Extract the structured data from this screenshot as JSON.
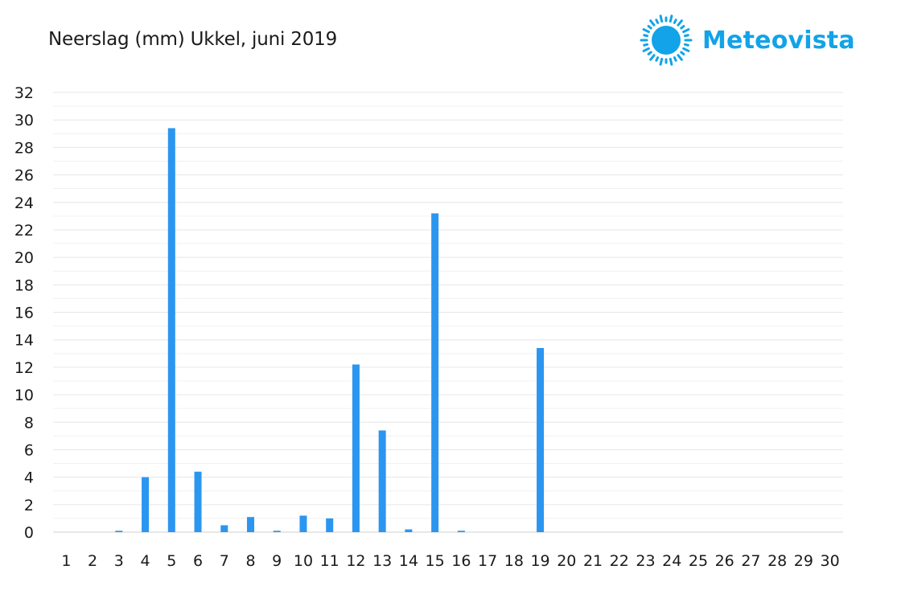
{
  "title": "Neerslag (mm) Ukkel, juni 2019",
  "brand": {
    "name": "Meteovista",
    "icon": "sun-logo-icon",
    "color": "#12a3e8"
  },
  "colors": {
    "bar": "#2b96f0",
    "grid": "#e6e6e6"
  },
  "chart_data": {
    "type": "bar",
    "title": "Neerslag (mm) Ukkel, juni 2019",
    "xlabel": "",
    "ylabel": "",
    "categories": [
      "1",
      "2",
      "3",
      "4",
      "5",
      "6",
      "7",
      "8",
      "9",
      "10",
      "11",
      "12",
      "13",
      "14",
      "15",
      "16",
      "17",
      "18",
      "19",
      "20",
      "21",
      "22",
      "23",
      "24",
      "25",
      "26",
      "27",
      "28",
      "29",
      "30"
    ],
    "values": [
      0,
      0,
      0.1,
      4.0,
      29.4,
      4.4,
      0.5,
      1.1,
      0.1,
      1.2,
      1.0,
      12.2,
      7.4,
      0.2,
      23.2,
      0.1,
      0,
      0,
      13.4,
      0,
      0,
      0,
      0,
      0,
      0,
      0,
      0,
      0,
      0,
      0
    ],
    "ylim": [
      0,
      32
    ],
    "yticks": [
      "0",
      "2",
      "4",
      "6",
      "8",
      "10",
      "12",
      "14",
      "16",
      "18",
      "20",
      "22",
      "24",
      "26",
      "28",
      "30",
      "32"
    ],
    "grid": true,
    "legend": "none"
  }
}
